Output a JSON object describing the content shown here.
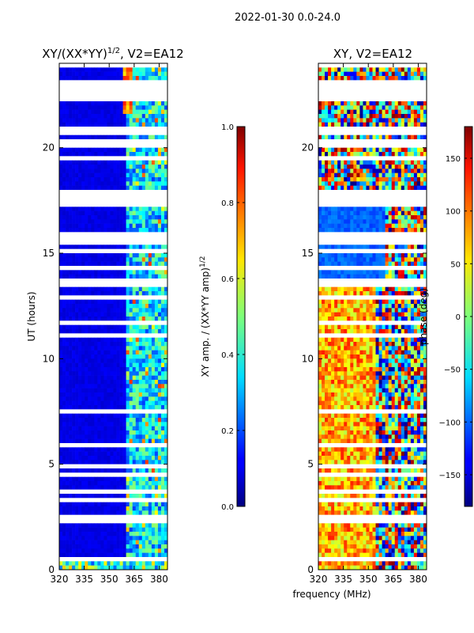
{
  "figure": {
    "suptitle": "2022-01-30 0.0-24.0",
    "shared_xlabel": "frequency (MHz)"
  },
  "chart_data": [
    {
      "type": "heatmap",
      "title_text": "XY/(XX*YY)",
      "title_exponent": "1/2",
      "title_suffix": ", V2=EA12",
      "ylabel": "UT (hours)",
      "xlim": [
        320,
        385
      ],
      "ylim": [
        0,
        24
      ],
      "xticks": [
        320,
        335,
        350,
        365,
        380
      ],
      "yticks": [
        0,
        5,
        10,
        15,
        20
      ],
      "colorbar": {
        "label_text": "XY amp. / (XX*YY amp)",
        "label_exponent": "1/2",
        "range": [
          0.0,
          1.0
        ],
        "ticks": [
          "0.0",
          "0.2",
          "0.4",
          "0.6",
          "0.8",
          "1.0"
        ],
        "colormap": "jet"
      }
    },
    {
      "type": "heatmap",
      "title": "XY, V2=EA12",
      "ylabel": "phase (deg)",
      "xlim": [
        320,
        385
      ],
      "ylim": [
        0,
        24
      ],
      "xticks": [
        320,
        335,
        350,
        365,
        380
      ],
      "yticks": [
        0,
        5,
        10,
        15,
        20
      ],
      "colorbar": {
        "range": [
          -180,
          180
        ],
        "ticks": [
          "150",
          "100",
          "50",
          "0",
          "−50",
          "−100",
          "−150"
        ],
        "colormap": "jet"
      }
    }
  ]
}
